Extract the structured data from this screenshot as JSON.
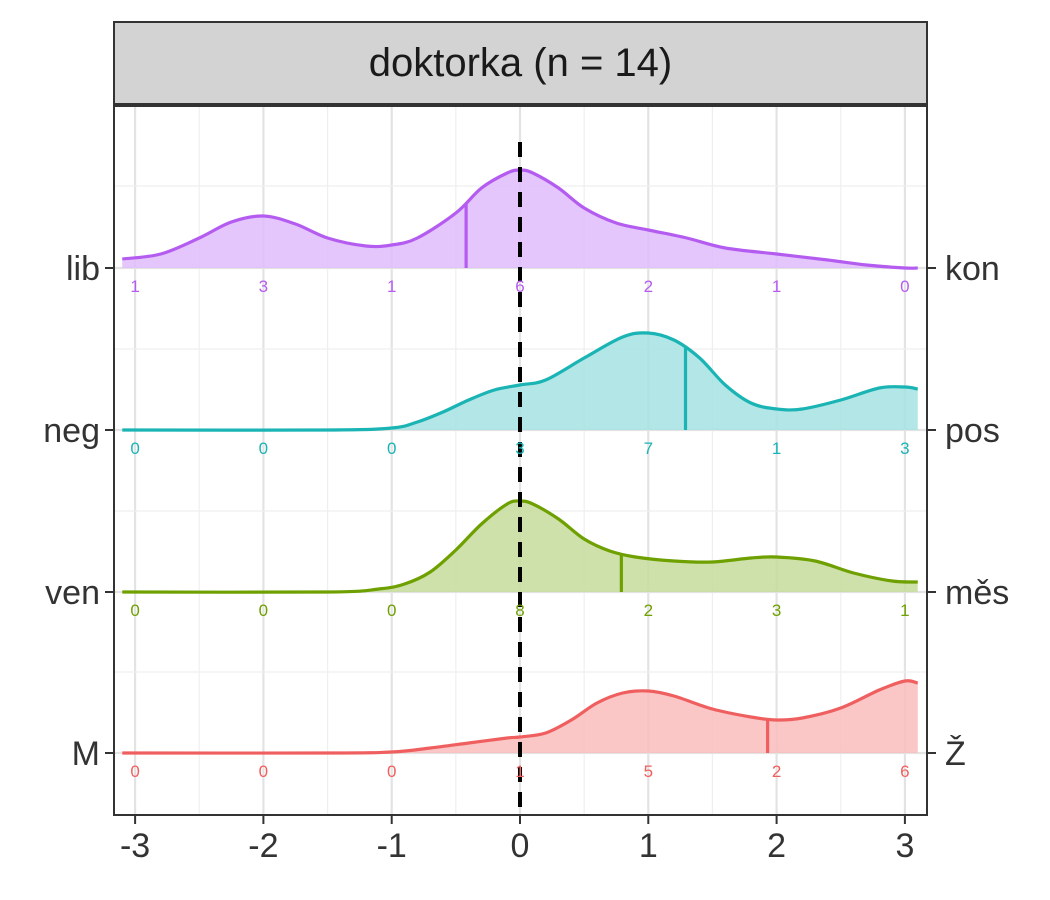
{
  "chart_data": {
    "type": "ridgeline",
    "title": "doktorka (n = 14)",
    "xlim": [
      -3.1,
      3.1
    ],
    "x_ticks": [
      -3,
      -2,
      -1,
      0,
      1,
      2,
      3
    ],
    "x_tick_labels": [
      "-3",
      "-2",
      "-1",
      "0",
      "1",
      "2",
      "3"
    ],
    "reference_line_x": 0,
    "grid": true,
    "series": [
      {
        "left_label": "lib",
        "right_label": "kon",
        "color": "#b55cf0",
        "fill": "#dfbcfc",
        "median": -0.42,
        "counts": [
          1,
          3,
          1,
          6,
          2,
          1,
          0
        ],
        "density": [
          [
            -3.1,
            0.09
          ],
          [
            -2.8,
            0.14
          ],
          [
            -2.5,
            0.3
          ],
          [
            -2.25,
            0.46
          ],
          [
            -2,
            0.52
          ],
          [
            -1.75,
            0.44
          ],
          [
            -1.5,
            0.3
          ],
          [
            -1.2,
            0.22
          ],
          [
            -1,
            0.23
          ],
          [
            -0.8,
            0.3
          ],
          [
            -0.5,
            0.55
          ],
          [
            -0.3,
            0.8
          ],
          [
            -0.1,
            0.95
          ],
          [
            0,
            0.98
          ],
          [
            0.1,
            0.95
          ],
          [
            0.3,
            0.8
          ],
          [
            0.5,
            0.6
          ],
          [
            0.75,
            0.45
          ],
          [
            1,
            0.38
          ],
          [
            1.3,
            0.3
          ],
          [
            1.6,
            0.2
          ],
          [
            2,
            0.14
          ],
          [
            2.4,
            0.08
          ],
          [
            2.7,
            0.03
          ],
          [
            3,
            0.0
          ],
          [
            3.1,
            0.0
          ]
        ]
      },
      {
        "left_label": "neg",
        "right_label": "pos",
        "color": "#1ab4b4",
        "fill": "#a6e2e2",
        "median": 1.29,
        "counts": [
          0,
          0,
          0,
          3,
          7,
          1,
          3
        ],
        "density": [
          [
            -3.1,
            0
          ],
          [
            -1.5,
            0
          ],
          [
            -1,
            0.02
          ],
          [
            -0.8,
            0.08
          ],
          [
            -0.6,
            0.18
          ],
          [
            -0.4,
            0.3
          ],
          [
            -0.2,
            0.4
          ],
          [
            0,
            0.45
          ],
          [
            0.2,
            0.5
          ],
          [
            0.5,
            0.72
          ],
          [
            0.8,
            0.93
          ],
          [
            1,
            0.97
          ],
          [
            1.2,
            0.9
          ],
          [
            1.4,
            0.72
          ],
          [
            1.6,
            0.45
          ],
          [
            1.8,
            0.27
          ],
          [
            2,
            0.21
          ],
          [
            2.2,
            0.21
          ],
          [
            2.5,
            0.3
          ],
          [
            2.8,
            0.42
          ],
          [
            3,
            0.43
          ],
          [
            3.1,
            0.41
          ]
        ]
      },
      {
        "left_label": "ven",
        "right_label": "měs",
        "color": "#6ea000",
        "fill": "#c6dc9c",
        "median": 0.79,
        "counts": [
          0,
          0,
          0,
          8,
          2,
          3,
          1
        ],
        "density": [
          [
            -3.1,
            0
          ],
          [
            -1.5,
            0
          ],
          [
            -1.1,
            0.03
          ],
          [
            -0.9,
            0.08
          ],
          [
            -0.7,
            0.2
          ],
          [
            -0.5,
            0.42
          ],
          [
            -0.3,
            0.68
          ],
          [
            -0.1,
            0.88
          ],
          [
            0,
            0.91
          ],
          [
            0.1,
            0.88
          ],
          [
            0.3,
            0.73
          ],
          [
            0.5,
            0.53
          ],
          [
            0.7,
            0.41
          ],
          [
            0.9,
            0.35
          ],
          [
            1.2,
            0.31
          ],
          [
            1.5,
            0.3
          ],
          [
            1.8,
            0.34
          ],
          [
            2,
            0.35
          ],
          [
            2.3,
            0.31
          ],
          [
            2.6,
            0.19
          ],
          [
            2.9,
            0.11
          ],
          [
            3.1,
            0.1
          ]
        ]
      },
      {
        "left_label": "M",
        "right_label": "Ž",
        "color": "#f05f5f",
        "fill": "#f9bcbc",
        "median": 1.93,
        "counts": [
          0,
          0,
          0,
          1,
          5,
          2,
          6
        ],
        "density": [
          [
            -3.1,
            0
          ],
          [
            -1.5,
            0
          ],
          [
            -1,
            0.01
          ],
          [
            -0.7,
            0.05
          ],
          [
            -0.4,
            0.1
          ],
          [
            -0.1,
            0.15
          ],
          [
            0,
            0.16
          ],
          [
            0.2,
            0.2
          ],
          [
            0.4,
            0.33
          ],
          [
            0.6,
            0.5
          ],
          [
            0.8,
            0.6
          ],
          [
            1,
            0.62
          ],
          [
            1.2,
            0.57
          ],
          [
            1.5,
            0.44
          ],
          [
            1.8,
            0.36
          ],
          [
            2,
            0.33
          ],
          [
            2.2,
            0.35
          ],
          [
            2.5,
            0.45
          ],
          [
            2.8,
            0.63
          ],
          [
            3,
            0.72
          ],
          [
            3.1,
            0.7
          ]
        ]
      }
    ]
  }
}
